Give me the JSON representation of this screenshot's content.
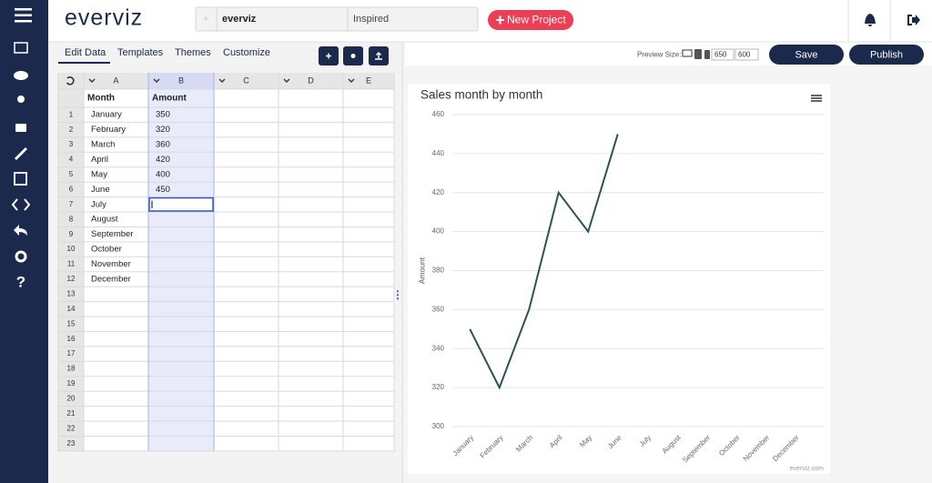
{
  "header": {
    "logo": "everviz",
    "project_name": "everviz",
    "theme_name": "Inspired",
    "new_project": "New Project"
  },
  "sidebar": {
    "help": "?"
  },
  "tabs": [
    "Edit Data",
    "Templates",
    "Themes",
    "Customize"
  ],
  "preview": {
    "label": "Preview Size:",
    "width": "650",
    "height": "600"
  },
  "actions": {
    "save": "Save",
    "publish": "Publish"
  },
  "sheet": {
    "columns": [
      "A",
      "B",
      "C",
      "D",
      "E"
    ],
    "headers": [
      "Month",
      "Amount"
    ],
    "rows": [
      1,
      2,
      3,
      4,
      5,
      6,
      7,
      8,
      9,
      10,
      11,
      12,
      13,
      14,
      15,
      16,
      17,
      18,
      19,
      20,
      21,
      22,
      23
    ]
  },
  "chart_data": {
    "type": "line",
    "title": "Sales month by month",
    "y_label": "Amount",
    "categories": [
      "January",
      "February",
      "March",
      "April",
      "May",
      "June",
      "July",
      "August",
      "September",
      "October",
      "November",
      "December"
    ],
    "series": [
      {
        "name": "Amount",
        "color": "#2b5358",
        "values": [
          350,
          320,
          360,
          420,
          400,
          450,
          null,
          null,
          null,
          null,
          null,
          null
        ]
      }
    ],
    "ylim": [
      300,
      460
    ],
    "yticks": [
      300,
      320,
      340,
      360,
      380,
      400,
      420,
      440,
      460
    ],
    "grid": true,
    "credits": "everviz.com"
  }
}
